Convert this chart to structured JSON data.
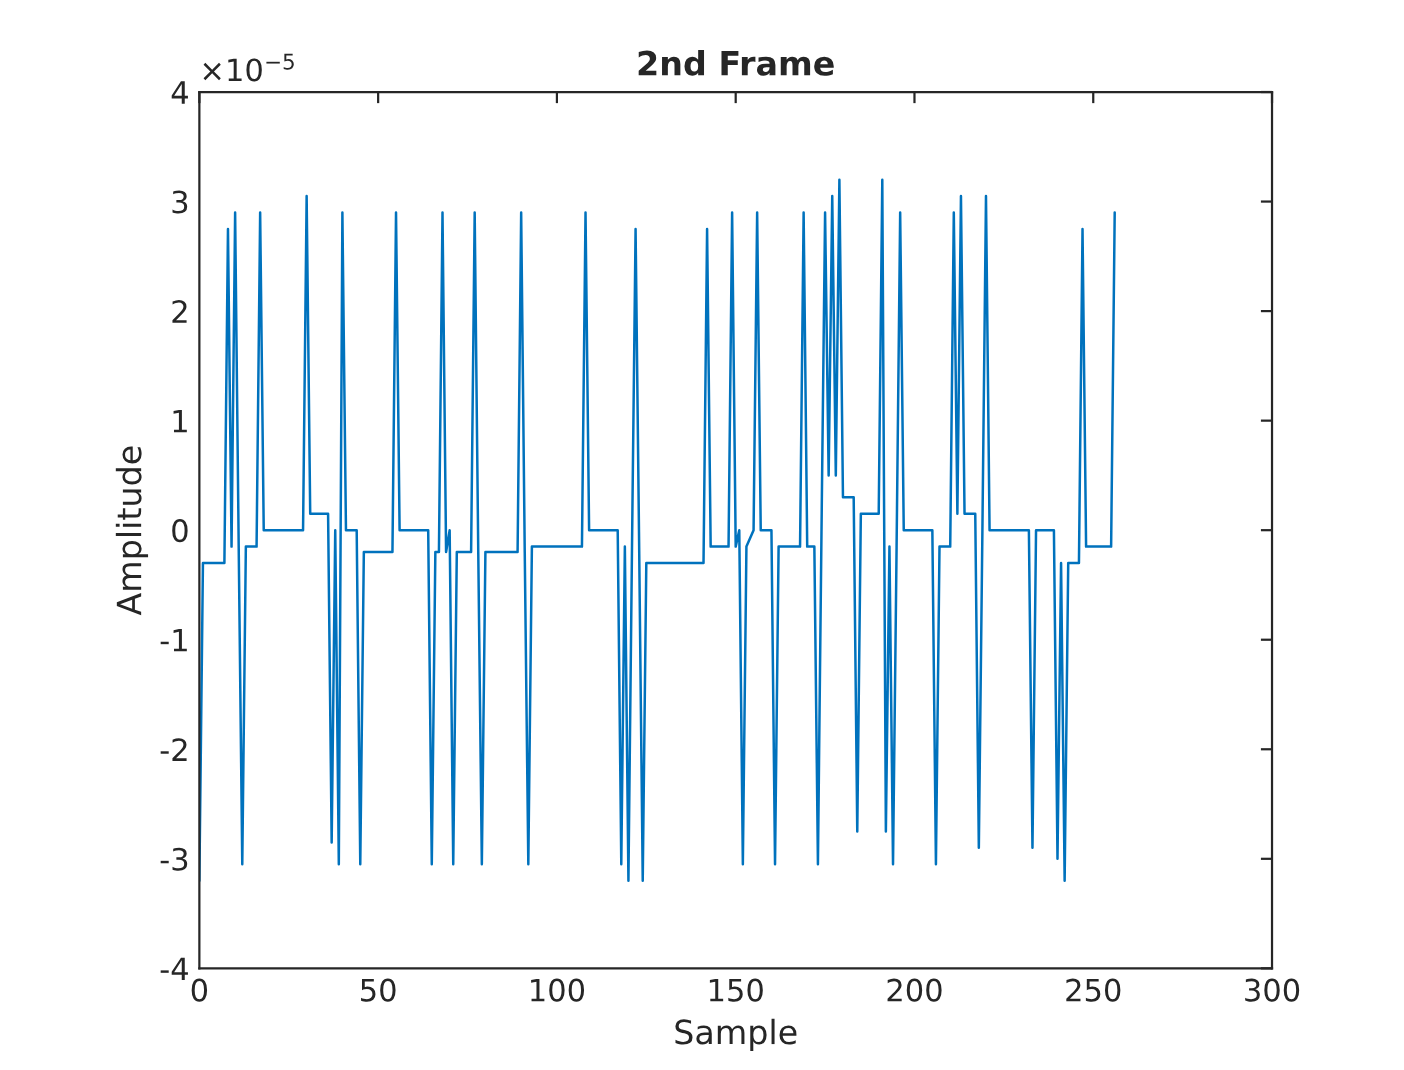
{
  "chart_data": {
    "type": "line",
    "title": "2nd Frame",
    "xlabel": "Sample",
    "ylabel": "Amplitude",
    "annotations": [
      "×10$^{−5}$"
    ],
    "xlim": [
      0,
      300
    ],
    "xticks": [
      0,
      50,
      100,
      150,
      200,
      250,
      300
    ],
    "ylim": [
      -4,
      4
    ],
    "yticks": [
      -4,
      -3,
      -2,
      -1,
      0,
      1,
      2,
      3,
      4
    ],
    "grid": false,
    "legend": false,
    "marker": "none",
    "line_style": "solid",
    "series": [
      {
        "color": "#0072bd",
        "x": [
          0,
          1,
          7,
          8,
          9,
          10,
          11,
          12,
          13,
          16,
          17,
          18,
          29,
          30,
          31,
          36,
          37,
          38,
          39,
          40,
          41,
          44,
          45,
          46,
          54,
          55,
          56,
          64,
          65,
          66,
          67,
          68,
          69,
          70,
          71,
          72,
          76,
          77,
          78,
          79,
          80,
          89,
          90,
          91,
          92,
          93,
          107,
          108,
          109,
          117,
          118,
          119,
          120,
          121,
          122,
          123,
          124,
          125,
          141,
          142,
          143,
          148,
          149,
          150,
          151,
          152,
          153,
          155,
          156,
          157,
          160,
          161,
          162,
          168,
          169,
          170,
          172,
          173,
          174,
          175,
          176,
          177,
          178,
          179,
          180,
          183,
          184,
          185,
          190,
          191,
          192,
          193,
          194,
          195,
          196,
          197,
          205,
          206,
          207,
          210,
          211,
          212,
          213,
          214,
          217,
          218,
          219,
          220,
          221,
          232,
          233,
          234,
          239,
          240,
          241,
          242,
          243,
          246,
          247,
          248,
          255,
          256
        ],
        "values": [
          -3.2,
          -0.3,
          -0.3,
          2.75,
          -0.15,
          2.9,
          -0.15,
          -3.05,
          -0.15,
          -0.15,
          2.9,
          0,
          0,
          3.05,
          0.15,
          0.15,
          -2.85,
          0,
          -3.05,
          2.9,
          0,
          0,
          -3.05,
          -0.2,
          -0.2,
          2.9,
          0,
          0,
          -3.05,
          -0.2,
          -0.2,
          2.9,
          -0.2,
          0,
          -3.05,
          -0.2,
          -0.2,
          2.9,
          -0.2,
          -3.05,
          -0.2,
          -0.2,
          2.9,
          -0.2,
          -3.05,
          -0.15,
          -0.15,
          2.9,
          0,
          0,
          -3.05,
          -0.15,
          -3.2,
          -0.15,
          2.75,
          -0.15,
          -3.2,
          -0.3,
          -0.3,
          2.75,
          -0.15,
          -0.15,
          2.9,
          -0.15,
          0,
          -3.05,
          -0.15,
          0,
          2.9,
          0,
          0,
          -3.05,
          -0.15,
          -0.15,
          2.9,
          -0.15,
          -0.15,
          -3.05,
          0,
          2.9,
          0.5,
          3.05,
          0.5,
          3.2,
          0.3,
          0.3,
          -2.75,
          0.15,
          0.15,
          3.2,
          -2.75,
          -0.15,
          -3.05,
          -0.15,
          2.9,
          0,
          0,
          -3.05,
          -0.15,
          -0.15,
          2.9,
          0.15,
          3.05,
          0.15,
          0.15,
          -2.9,
          0,
          3.05,
          0,
          0,
          -2.9,
          0,
          0,
          -3.0,
          -0.3,
          -3.2,
          -0.3,
          -0.3,
          2.75,
          -0.15,
          -0.15,
          2.9
        ]
      }
    ]
  }
}
